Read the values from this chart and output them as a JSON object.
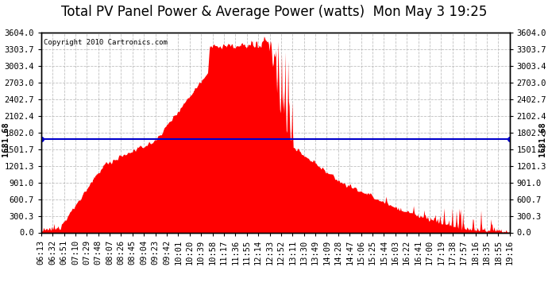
{
  "title": "Total PV Panel Power & Average Power (watts)  Mon May 3 19:25",
  "copyright": "Copyright 2010 Cartronics.com",
  "avg_power": 1681.68,
  "y_max": 3604.0,
  "y_min": 0.0,
  "y_ticks": [
    0.0,
    300.3,
    600.7,
    901.0,
    1201.3,
    1501.7,
    1802.0,
    2102.4,
    2402.7,
    2703.0,
    3003.4,
    3303.7,
    3604.0
  ],
  "background_color": "#ffffff",
  "plot_bg_color": "#ffffff",
  "grid_color": "#b0b0b0",
  "fill_color": "#ff0000",
  "line_color": "#ff0000",
  "avg_line_color": "#0000cc",
  "title_fontsize": 12,
  "tick_fontsize": 7.5,
  "x_tick_labels": [
    "06:13",
    "06:32",
    "06:51",
    "07:10",
    "07:29",
    "07:48",
    "08:07",
    "08:26",
    "08:45",
    "09:04",
    "09:23",
    "09:42",
    "10:01",
    "10:20",
    "10:39",
    "10:58",
    "11:17",
    "11:36",
    "11:55",
    "12:14",
    "12:33",
    "12:52",
    "13:11",
    "13:30",
    "13:49",
    "14:09",
    "14:28",
    "14:47",
    "15:06",
    "15:25",
    "15:44",
    "16:03",
    "16:22",
    "16:41",
    "17:00",
    "17:19",
    "17:38",
    "17:57",
    "18:16",
    "18:35",
    "18:55",
    "19:16"
  ]
}
